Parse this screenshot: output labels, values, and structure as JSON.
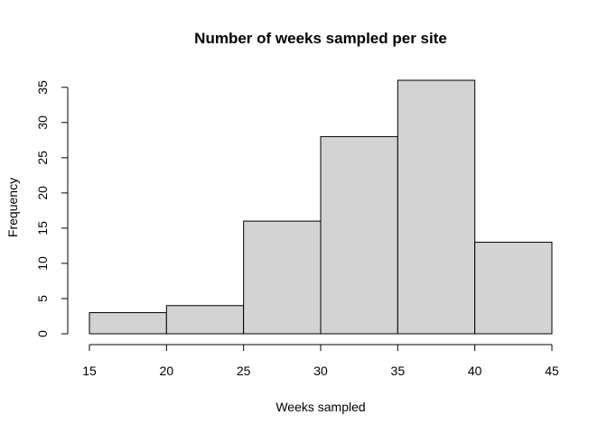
{
  "chart_data": {
    "type": "bar",
    "title": "Number of weeks sampled per site",
    "xlabel": "Weeks sampled",
    "ylabel": "Frequency",
    "bins": [
      {
        "start": 15,
        "end": 20,
        "value": 3
      },
      {
        "start": 20,
        "end": 25,
        "value": 4
      },
      {
        "start": 25,
        "end": 30,
        "value": 16
      },
      {
        "start": 30,
        "end": 35,
        "value": 28
      },
      {
        "start": 35,
        "end": 40,
        "value": 36
      },
      {
        "start": 40,
        "end": 45,
        "value": 13
      }
    ],
    "x_ticks": [
      15,
      20,
      25,
      30,
      35,
      40,
      45
    ],
    "y_ticks": [
      0,
      5,
      10,
      15,
      20,
      25,
      30,
      35
    ],
    "xlim": [
      15,
      45
    ],
    "ylim": [
      0,
      36
    ],
    "bar_color": "#d3d3d3",
    "edge_color": "#000000",
    "grid": false,
    "legend": "none"
  }
}
